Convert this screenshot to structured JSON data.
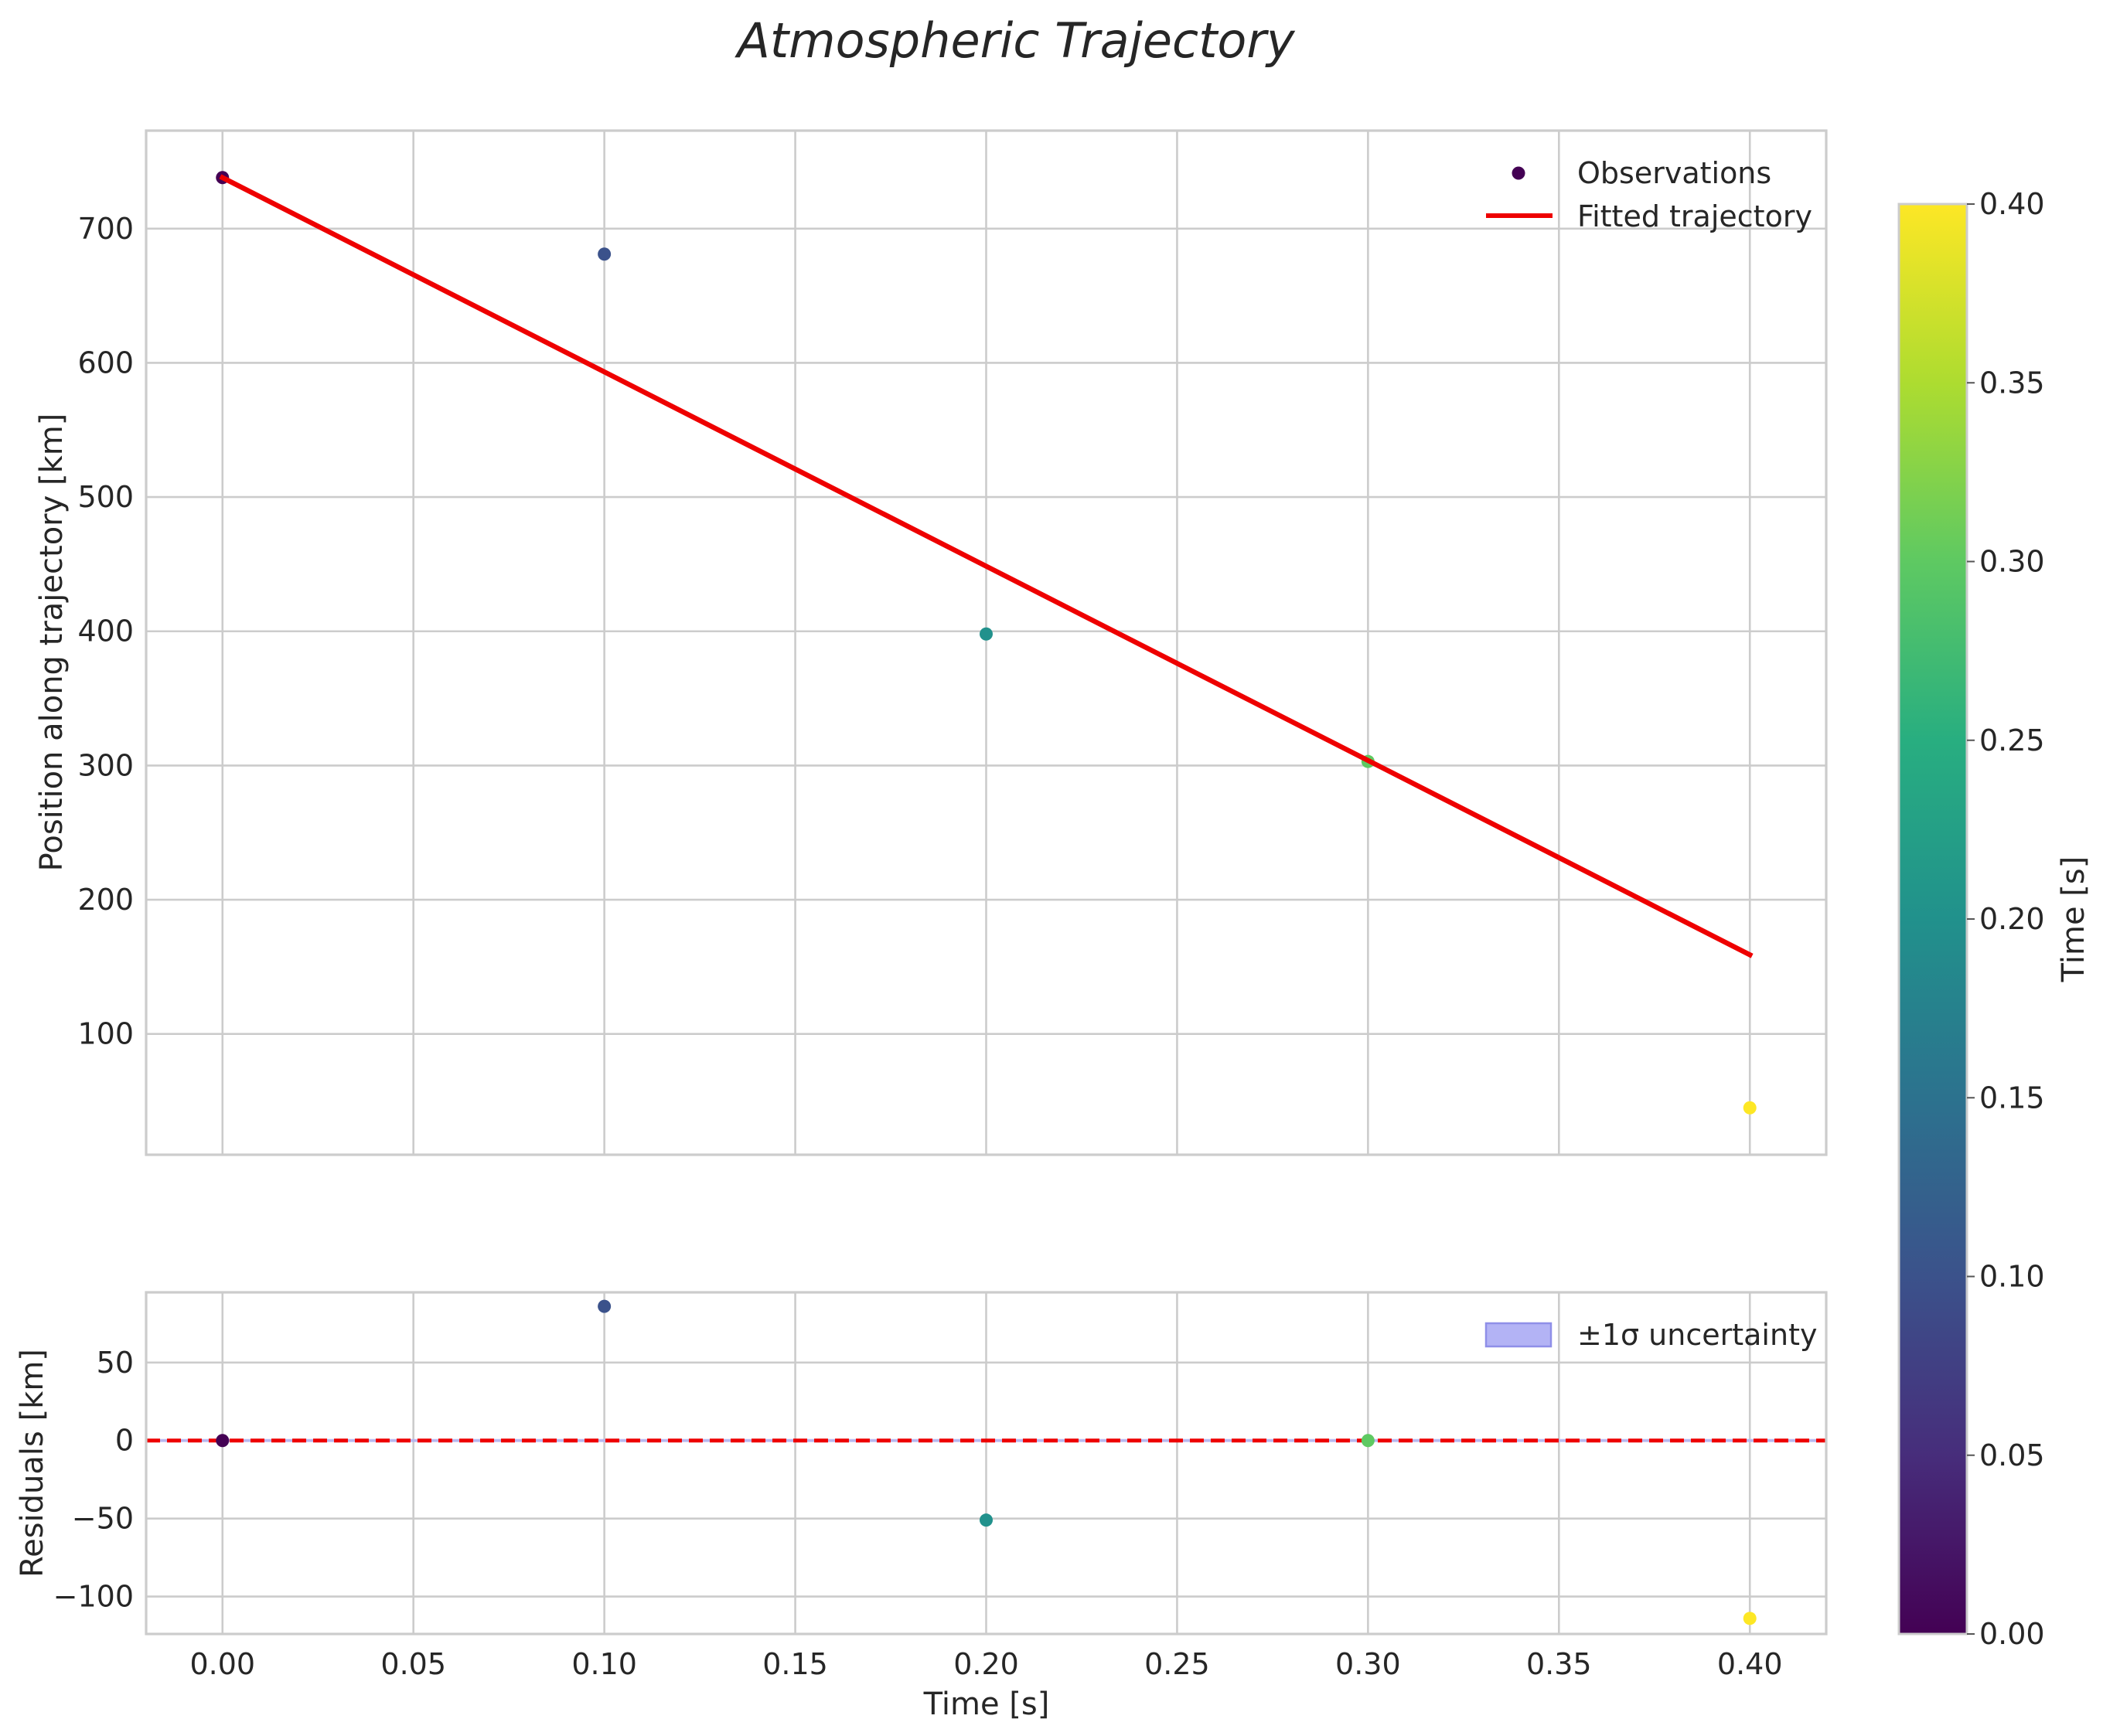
{
  "chart_data": {
    "type": "scatter",
    "title": "Atmospheric Trajectory",
    "colorbar": {
      "label": "Time [s]",
      "colormap": "viridis",
      "range": [
        0.0,
        0.4
      ],
      "ticks": [
        "0.00",
        "0.05",
        "0.10",
        "0.15",
        "0.20",
        "0.25",
        "0.30",
        "0.35",
        "0.40"
      ]
    },
    "panels": [
      {
        "name": "trajectory",
        "ylabel": "Position along trajectory [km]",
        "xlim": [
          -0.02,
          0.42
        ],
        "ylim": [
          10,
          773
        ],
        "x_ticks": [
          0.0,
          0.05,
          0.1,
          0.15,
          0.2,
          0.25,
          0.3,
          0.35,
          0.4
        ],
        "y_ticks": [
          100,
          200,
          300,
          400,
          500,
          600,
          700
        ],
        "y_tick_labels": [
          "100",
          "200",
          "300",
          "400",
          "500",
          "600",
          "700"
        ],
        "legend": {
          "location": "upper right",
          "entries": [
            "Observations",
            "Fitted trajectory"
          ]
        },
        "series": [
          {
            "name": "Observations",
            "kind": "scatter",
            "x": [
              0.0,
              0.1,
              0.2,
              0.3,
              0.4
            ],
            "y": [
              738,
              681,
              398,
              303,
              45
            ],
            "color_by": "time"
          },
          {
            "name": "Fitted trajectory",
            "kind": "line",
            "color": "#ee0000",
            "x": [
              0.0,
              0.4
            ],
            "y": [
              738,
              159
            ]
          }
        ]
      },
      {
        "name": "residuals",
        "ylabel": "Residuals [km]",
        "xlabel": "Time [s]",
        "xlim": [
          -0.02,
          0.42
        ],
        "ylim": [
          -124,
          95
        ],
        "x_ticks": [
          0.0,
          0.05,
          0.1,
          0.15,
          0.2,
          0.25,
          0.3,
          0.35,
          0.4
        ],
        "x_tick_labels": [
          "0.00",
          "0.05",
          "0.10",
          "0.15",
          "0.20",
          "0.25",
          "0.30",
          "0.35",
          "0.40"
        ],
        "y_ticks": [
          -100,
          -50,
          0,
          50
        ],
        "y_tick_labels": [
          "−100",
          "−50",
          "0",
          "50"
        ],
        "legend": {
          "location": "upper right",
          "entries": [
            "±1σ uncertainty"
          ]
        },
        "series": [
          {
            "name": "Residuals",
            "kind": "scatter",
            "x": [
              0.0,
              0.1,
              0.2,
              0.3,
              0.4
            ],
            "y": [
              0,
              86,
              -51,
              0,
              -114
            ],
            "color_by": "time"
          },
          {
            "name": "±1σ uncertainty",
            "kind": "band",
            "color": "#b3b3f5",
            "x": [
              -0.02,
              0.42
            ],
            "lower": [
              -1,
              -1
            ],
            "upper": [
              1,
              1
            ]
          },
          {
            "name": "Zero reference",
            "kind": "hline",
            "color": "#ee0000",
            "y": 0
          }
        ]
      }
    ]
  }
}
